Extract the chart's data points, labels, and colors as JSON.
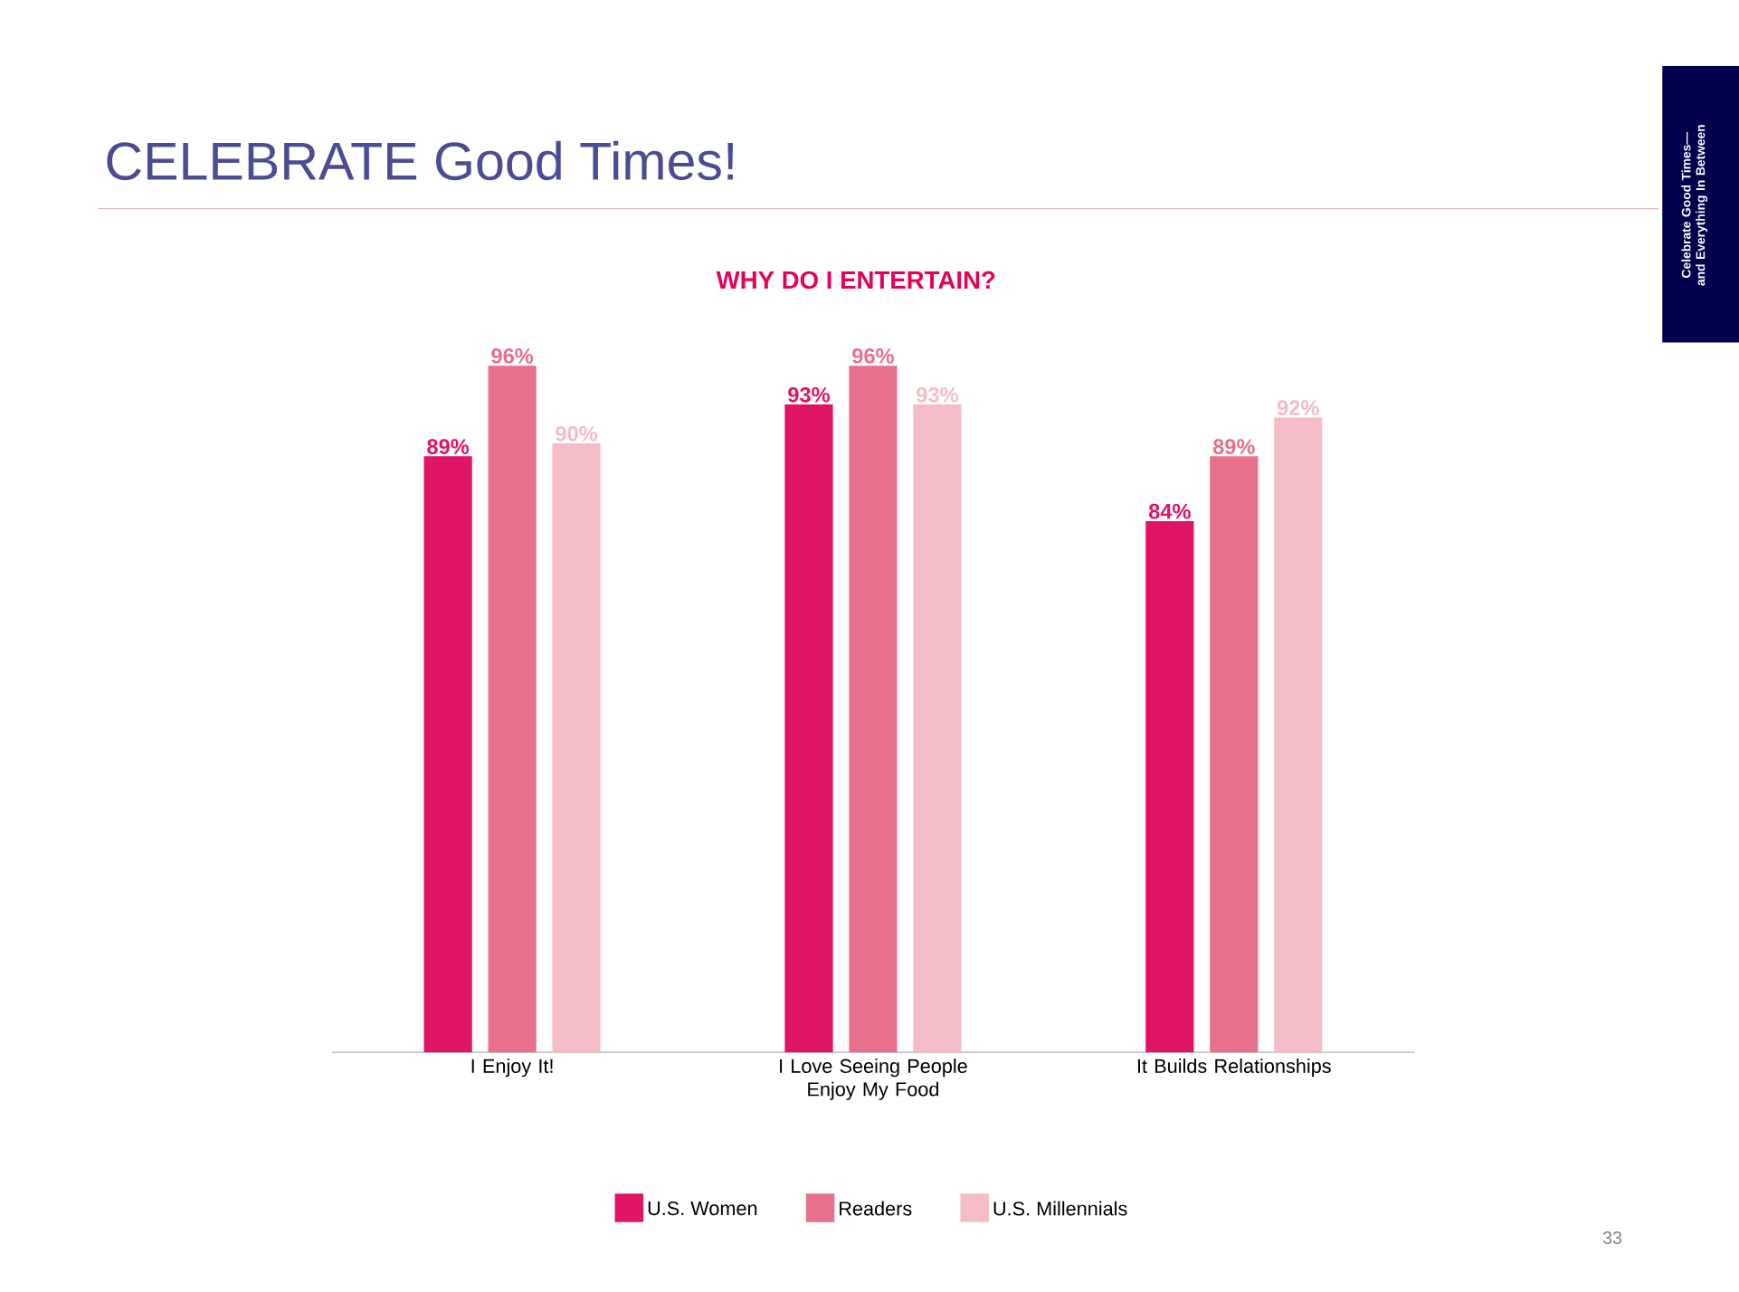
{
  "chart_data": {
    "type": "bar",
    "title": "CELEBRATE Good Times!",
    "subtitle": "WHY DO I ENTERTAIN?",
    "categories": [
      "I Enjoy It!",
      "I Love Seeing People Enjoy My Food",
      "It Builds Relationships"
    ],
    "series": [
      {
        "name": "U.S. Women",
        "color": "#df1467",
        "values": [
          89,
          93,
          84
        ],
        "value_labels": [
          "89%",
          "93%",
          "84%"
        ]
      },
      {
        "name": "Readers",
        "color": "#e8708c",
        "values": [
          96,
          96,
          89
        ],
        "value_labels": [
          "96%",
          "96%",
          "89%"
        ]
      },
      {
        "name": "U.S. Millennials",
        "color": "#f4bcc6",
        "values": [
          90,
          93,
          92
        ],
        "value_labels": [
          "90%",
          "93%",
          "92%"
        ]
      }
    ],
    "ylim": [
      43,
      96
    ],
    "legend": "bottom",
    "annotations": [
      "Celebrate Good Times—and Everything In Between",
      "33"
    ]
  }
}
